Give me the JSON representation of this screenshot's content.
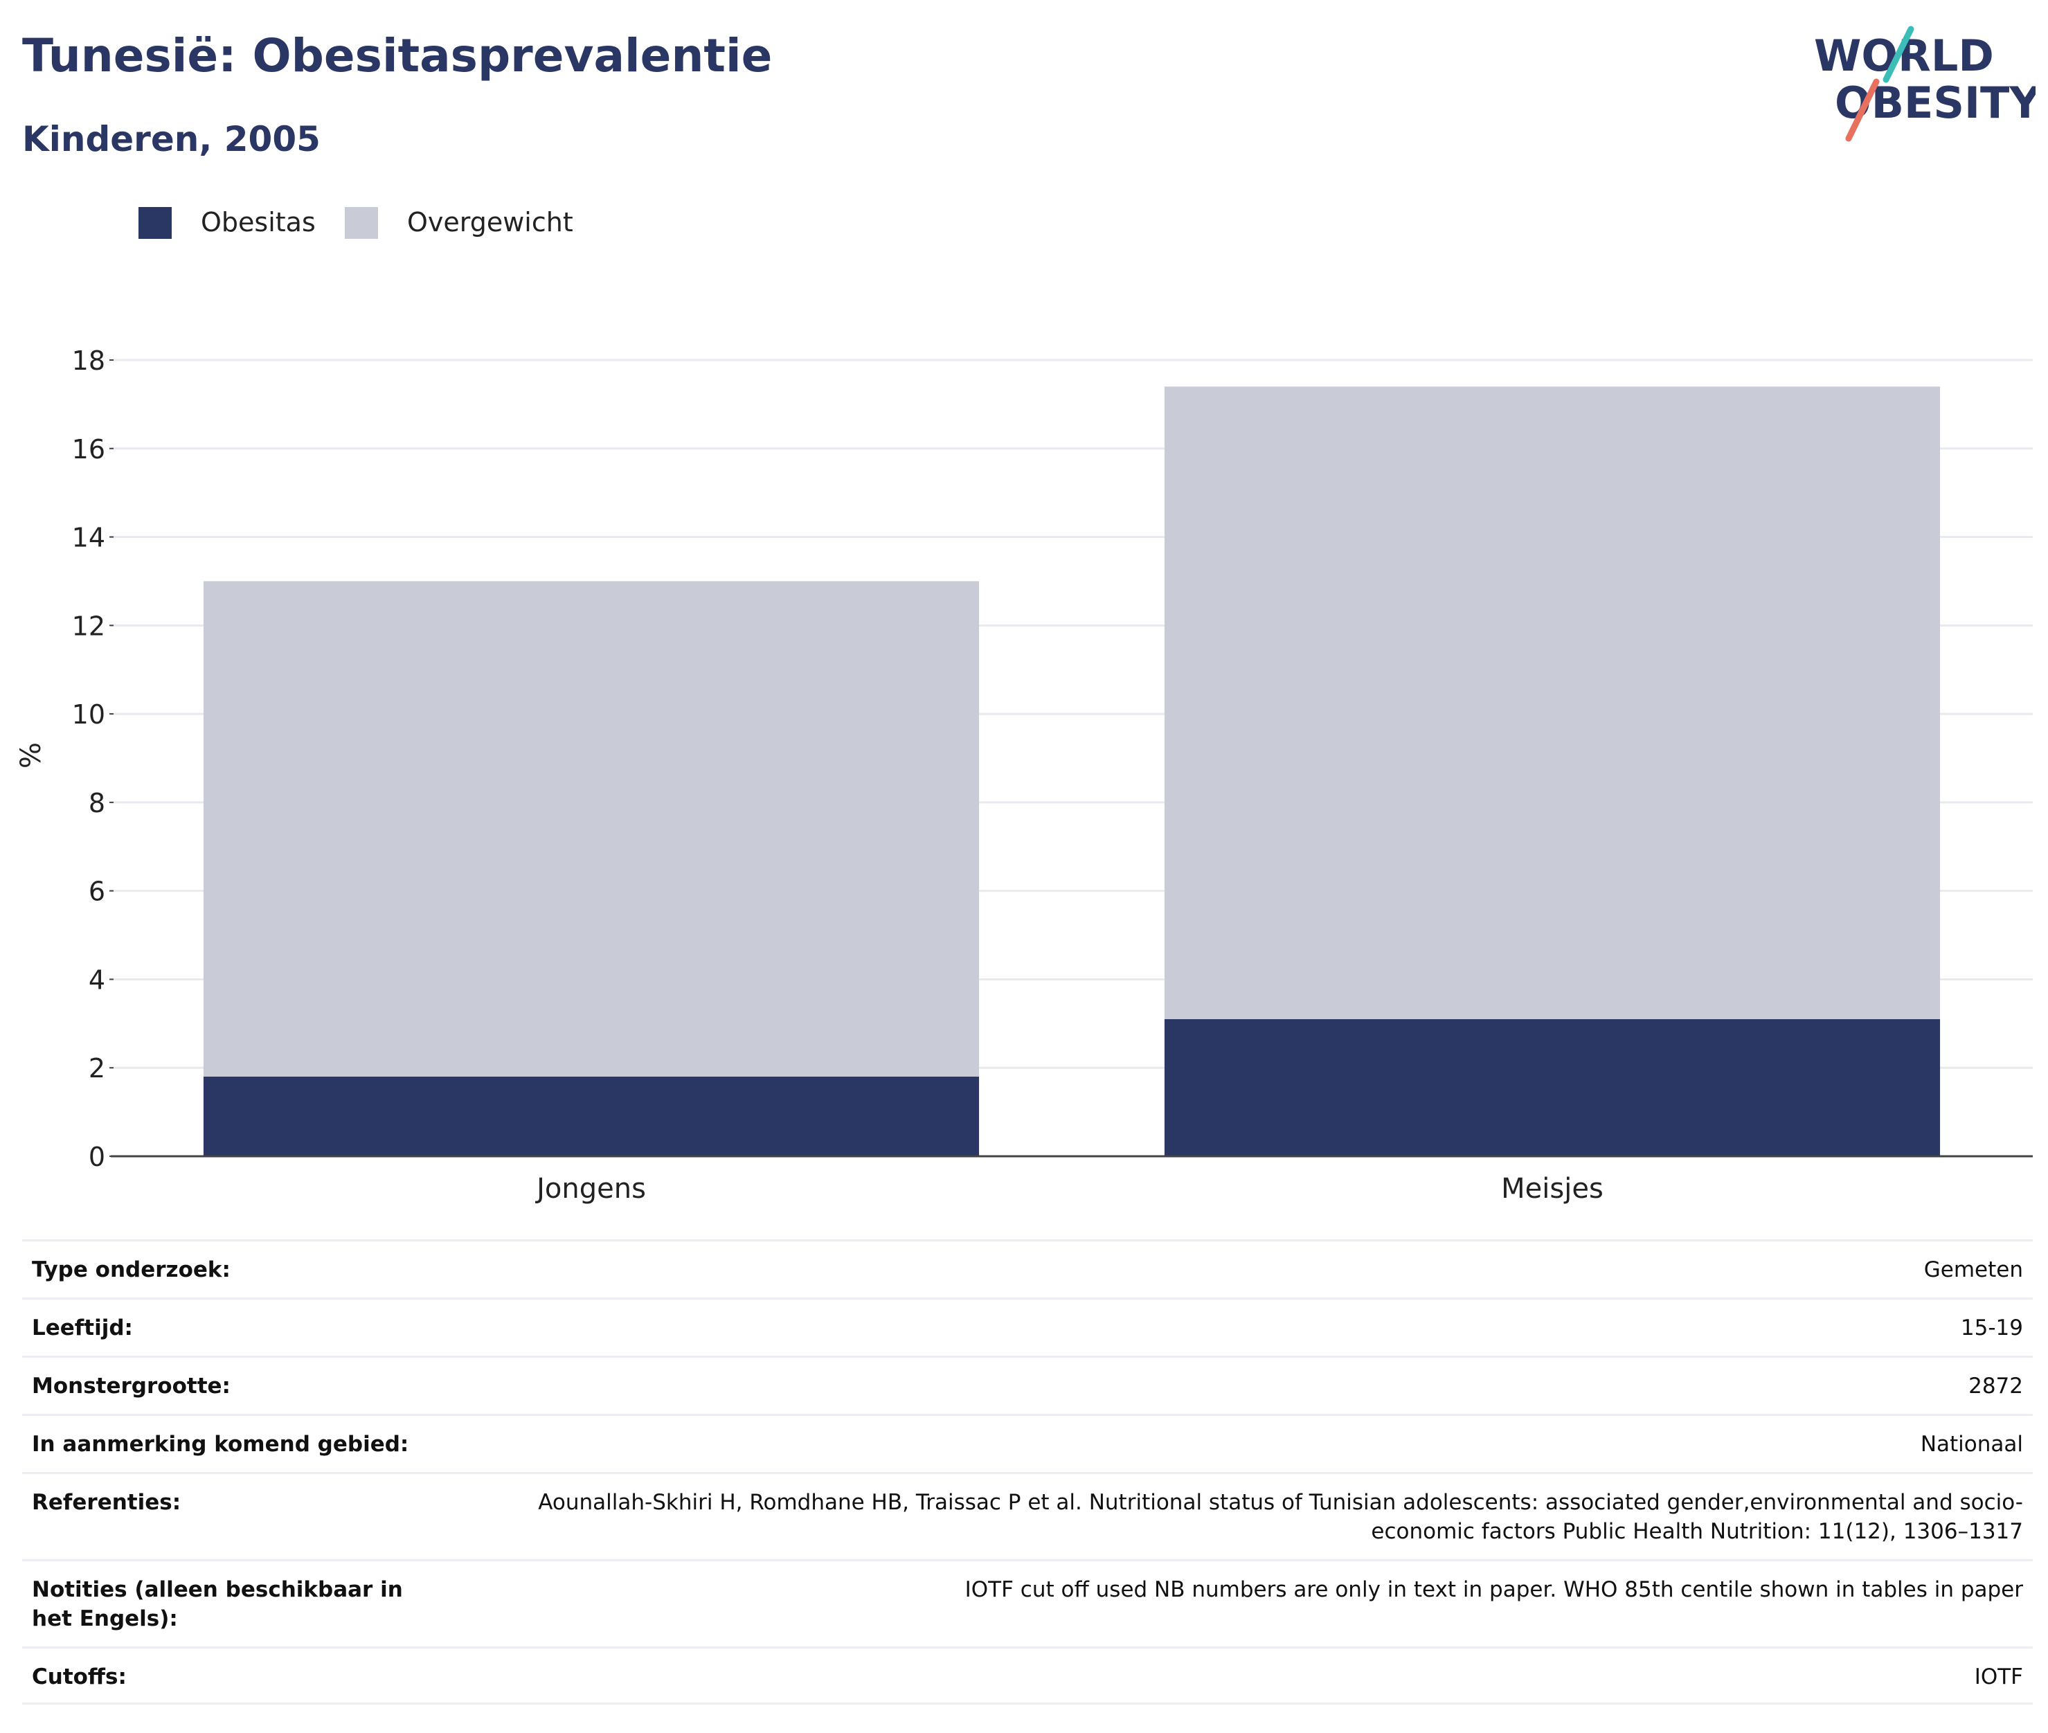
{
  "header": {
    "title": "Tunesië: Obesitasprevalentie",
    "subtitle": "Kinderen, 2005"
  },
  "logo": {
    "line1": "WORLD",
    "line2": "OBESITY",
    "colors": {
      "text": "#2a3663",
      "accent_teal": "#3dbdb8",
      "accent_coral": "#e8705f"
    }
  },
  "legend": [
    {
      "label": "Obesitas",
      "color": "#2a3663"
    },
    {
      "label": "Overgewicht",
      "color": "#c9cbd6"
    }
  ],
  "chart_data": {
    "type": "bar",
    "stacked": true,
    "categories": [
      "Jongens",
      "Meisjes"
    ],
    "series": [
      {
        "name": "Obesitas",
        "color": "#2a3663",
        "values": [
          1.8,
          3.1
        ]
      },
      {
        "name": "Overgewicht",
        "color": "#c9cbd6",
        "values": [
          11.2,
          14.3
        ]
      }
    ],
    "title": "",
    "xlabel": "",
    "ylabel": "%",
    "ylim": [
      0,
      18
    ],
    "yticks": [
      0,
      2,
      4,
      6,
      8,
      10,
      12,
      14,
      16,
      18
    ],
    "grid": true,
    "legend_position": "top-left"
  },
  "meta": [
    {
      "label": "Type onderzoek:",
      "value": "Gemeten"
    },
    {
      "label": "Leeftijd:",
      "value": "15-19"
    },
    {
      "label": "Monstergrootte:",
      "value": "2872"
    },
    {
      "label": "In aanmerking komend gebied:",
      "value": "Nationaal"
    },
    {
      "label": "Referenties:",
      "value": "Aounallah-Skhiri H, Romdhane HB, Traissac P et al. Nutritional status of Tunisian adolescents: associated gender,environmental and socio-economic factors Public Health Nutrition: 11(12), 1306–1317"
    },
    {
      "label": "Notities (alleen beschikbaar in het Engels):",
      "value": "IOTF cut off used NB numbers are only in text in paper. WHO 85th centile shown in tables in paper"
    },
    {
      "label": "Cutoffs:",
      "value": "IOTF"
    }
  ]
}
